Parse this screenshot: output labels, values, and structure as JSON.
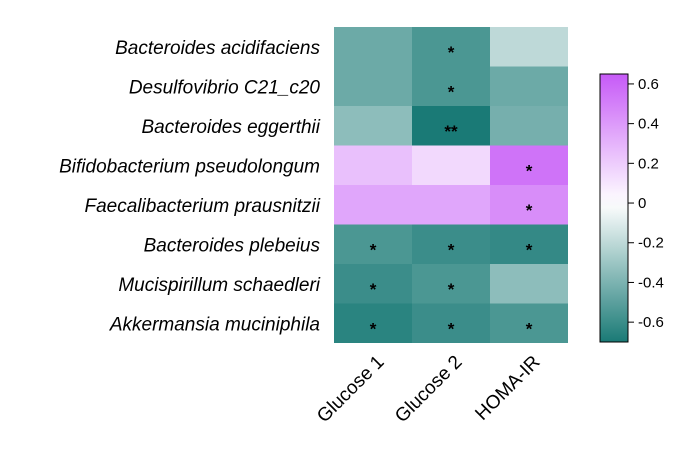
{
  "chart_data": {
    "type": "heatmap",
    "rows": [
      "Bacteroides acidifaciens",
      "Desulfovibrio C21_c20",
      "Bacteroides eggerthii",
      "Bifidobacterium pseudolongum",
      "Faecalibacterium prausnitzii",
      "Bacteroides plebeius",
      "Mucispirillum schaedleri",
      "Akkermansia muciniphila"
    ],
    "columns": [
      "Glucose 1",
      "Glucose 2",
      "HOMA-IR"
    ],
    "values": [
      [
        -0.45,
        -0.55,
        -0.2
      ],
      [
        -0.45,
        -0.55,
        -0.45
      ],
      [
        -0.35,
        -0.7,
        -0.42
      ],
      [
        0.25,
        0.15,
        0.55
      ],
      [
        0.35,
        0.35,
        0.45
      ],
      [
        -0.55,
        -0.6,
        -0.62
      ],
      [
        -0.6,
        -0.55,
        -0.35
      ],
      [
        -0.65,
        -0.6,
        -0.55
      ]
    ],
    "significance": [
      [
        "",
        "*",
        ""
      ],
      [
        "",
        "*",
        ""
      ],
      [
        "",
        "**",
        ""
      ],
      [
        "",
        "",
        "*"
      ],
      [
        "",
        "",
        "*"
      ],
      [
        "*",
        "*",
        "*"
      ],
      [
        "*",
        "*",
        ""
      ],
      [
        "*",
        "*",
        "*"
      ]
    ],
    "colorbar": {
      "min": -0.7,
      "max": 0.65,
      "ticks": [
        0.6,
        0.4,
        0.2,
        0,
        -0.2,
        -0.4,
        -0.6
      ],
      "tick_labels": [
        "0.6",
        "0.4",
        "0.2",
        "0",
        "-0.2",
        "-0.4",
        "-0.6"
      ],
      "color_low": "#1a7a76",
      "color_mid": "#ffffff",
      "color_high": "#c65af7"
    }
  }
}
